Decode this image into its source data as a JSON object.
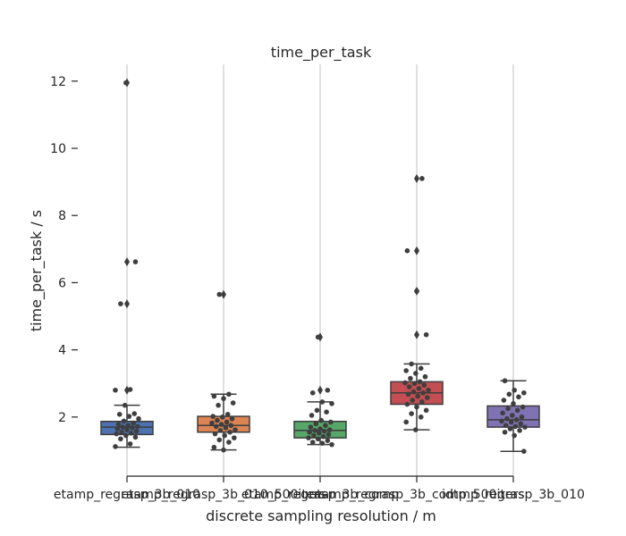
{
  "chart_data": {
    "type": "box",
    "title": "time_per_task",
    "xlabel": "discrete sampling resolution / m",
    "ylabel": "time_per_task / s",
    "ylim": [
      0.4,
      12.5
    ],
    "yticks": [
      2,
      4,
      6,
      8,
      10,
      12
    ],
    "grid": "x",
    "legend": "none",
    "categories": [
      "etamp_regrasp_3b_010",
      "etamp_regrasp_3b_010_500iters",
      "etamp_regrasp_3b_comp",
      "etamp_regrasp_3b_comp_500iters",
      "idtmp_regrasp_3b_010"
    ],
    "colors": [
      "#4c72b0",
      "#dd8452",
      "#55a868",
      "#c44e52",
      "#8172b3"
    ],
    "boxes": [
      {
        "q1": 1.48,
        "median": 1.7,
        "q3": 1.87,
        "whisker_low": 1.1,
        "whisker_high": 2.35,
        "outliers": [
          2.8,
          5.37,
          6.62,
          11.95
        ]
      },
      {
        "q1": 1.55,
        "median": 1.75,
        "q3": 2.02,
        "whisker_low": 1.02,
        "whisker_high": 2.68,
        "outliers": [
          5.65
        ]
      },
      {
        "q1": 1.38,
        "median": 1.6,
        "q3": 1.87,
        "whisker_low": 1.18,
        "whisker_high": 2.45,
        "outliers": [
          2.8,
          4.38
        ]
      },
      {
        "q1": 2.38,
        "median": 2.72,
        "q3": 3.05,
        "whisker_low": 1.62,
        "whisker_high": 3.58,
        "outliers": [
          4.45,
          5.75,
          6.95,
          9.1
        ]
      },
      {
        "q1": 1.7,
        "median": 1.92,
        "q3": 2.33,
        "whisker_low": 0.98,
        "whisker_high": 3.08,
        "outliers": []
      }
    ],
    "points": [
      [
        1.12,
        1.2,
        1.35,
        1.4,
        1.45,
        1.5,
        1.52,
        1.55,
        1.58,
        1.62,
        1.65,
        1.68,
        1.7,
        1.72,
        1.75,
        1.78,
        1.82,
        1.88,
        1.95,
        2.02,
        2.08,
        2.1,
        2.35,
        2.8,
        2.82,
        5.37,
        6.62,
        11.95
      ],
      [
        1.02,
        1.1,
        1.25,
        1.32,
        1.38,
        1.45,
        1.5,
        1.55,
        1.6,
        1.62,
        1.68,
        1.72,
        1.75,
        1.78,
        1.82,
        1.85,
        1.9,
        1.95,
        2.0,
        2.02,
        2.08,
        2.35,
        2.42,
        2.55,
        2.62,
        2.68,
        5.65
      ],
      [
        1.18,
        1.22,
        1.25,
        1.3,
        1.35,
        1.38,
        1.42,
        1.45,
        1.48,
        1.52,
        1.55,
        1.58,
        1.6,
        1.62,
        1.65,
        1.7,
        1.75,
        1.8,
        1.85,
        1.9,
        2.05,
        2.15,
        2.2,
        2.4,
        2.45,
        2.72,
        2.8,
        4.38
      ],
      [
        1.62,
        1.85,
        2.0,
        2.1,
        2.2,
        2.3,
        2.38,
        2.45,
        2.5,
        2.58,
        2.62,
        2.68,
        2.72,
        2.75,
        2.8,
        2.85,
        2.9,
        2.95,
        3.0,
        3.02,
        3.05,
        3.15,
        3.2,
        3.3,
        3.38,
        3.45,
        3.58,
        4.45,
        5.75,
        6.95,
        9.1
      ],
      [
        0.98,
        1.45,
        1.55,
        1.6,
        1.65,
        1.7,
        1.72,
        1.75,
        1.8,
        1.85,
        1.88,
        1.92,
        1.95,
        2.0,
        2.05,
        2.12,
        2.2,
        2.25,
        2.3,
        2.4,
        2.5,
        2.6,
        2.68,
        2.72,
        2.8,
        3.08
      ]
    ]
  }
}
